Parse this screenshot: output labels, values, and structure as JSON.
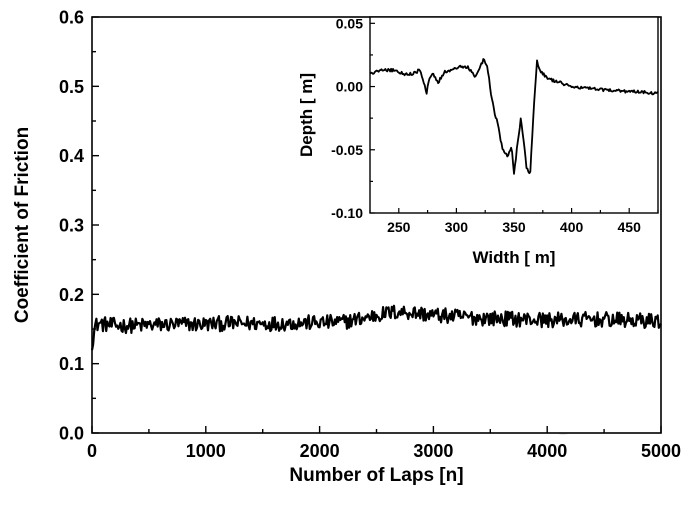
{
  "chart_data": [
    {
      "type": "line",
      "xlabel": "Number of Laps [n]",
      "ylabel": "Coefficient of Friction",
      "xlim": [
        0,
        5000
      ],
      "ylim": [
        0.0,
        0.6
      ],
      "xticks": [
        "0",
        "1000",
        "2000",
        "3000",
        "4000",
        "5000"
      ],
      "yticks": [
        "0.0",
        "0.1",
        "0.2",
        "0.3",
        "0.4",
        "0.5",
        "0.6"
      ],
      "grid": false,
      "series": [
        {
          "x": [
            0,
            30,
            60,
            100,
            200,
            400,
            600,
            800,
            1000,
            1200,
            1400,
            1600,
            1800,
            2000,
            2200,
            2400,
            2500,
            2600,
            2700,
            2800,
            2900,
            3000,
            3200,
            3400,
            3600,
            3800,
            4000,
            4200,
            4400,
            4600,
            4800,
            5000
          ],
          "y": [
            0.13,
            0.155,
            0.158,
            0.157,
            0.155,
            0.155,
            0.156,
            0.157,
            0.157,
            0.158,
            0.158,
            0.158,
            0.159,
            0.159,
            0.16,
            0.166,
            0.17,
            0.173,
            0.175,
            0.174,
            0.172,
            0.17,
            0.168,
            0.166,
            0.165,
            0.164,
            0.163,
            0.163,
            0.164,
            0.163,
            0.162,
            0.162
          ],
          "noise_amplitude": 0.011
        }
      ]
    },
    {
      "type": "line",
      "xlabel": "Width [  m]",
      "ylabel": "Depth [  m]",
      "xlim": [
        225,
        475
      ],
      "ylim": [
        -0.1,
        0.055
      ],
      "xticks": [
        "250",
        "300",
        "350",
        "400",
        "450"
      ],
      "yticks": [
        "-0.10",
        "-0.05",
        "0.00",
        "0.05"
      ],
      "grid": false,
      "series": [
        {
          "x": [
            225,
            235,
            245,
            255,
            262,
            268,
            272,
            274,
            276,
            280,
            284,
            290,
            297,
            304,
            310,
            316,
            320,
            324,
            327,
            330,
            333,
            336,
            340,
            344,
            348,
            350,
            353,
            356,
            358,
            361,
            364,
            367,
            370,
            373,
            380,
            390,
            400,
            410,
            420,
            430,
            440,
            450,
            460,
            470,
            475
          ],
          "y": [
            0.01,
            0.013,
            0.013,
            0.01,
            0.01,
            0.013,
            0.003,
            -0.006,
            0.005,
            0.01,
            0.003,
            0.012,
            0.013,
            0.016,
            0.015,
            0.008,
            0.015,
            0.022,
            0.015,
            -0.005,
            -0.02,
            -0.03,
            -0.05,
            -0.055,
            -0.048,
            -0.07,
            -0.045,
            -0.025,
            -0.04,
            -0.065,
            -0.07,
            -0.02,
            0.02,
            0.012,
            0.006,
            0.003,
            0.0,
            -0.001,
            -0.002,
            -0.003,
            -0.003,
            -0.004,
            -0.004,
            -0.005,
            -0.005
          ],
          "noise_amplitude": 0.0012
        }
      ]
    }
  ]
}
